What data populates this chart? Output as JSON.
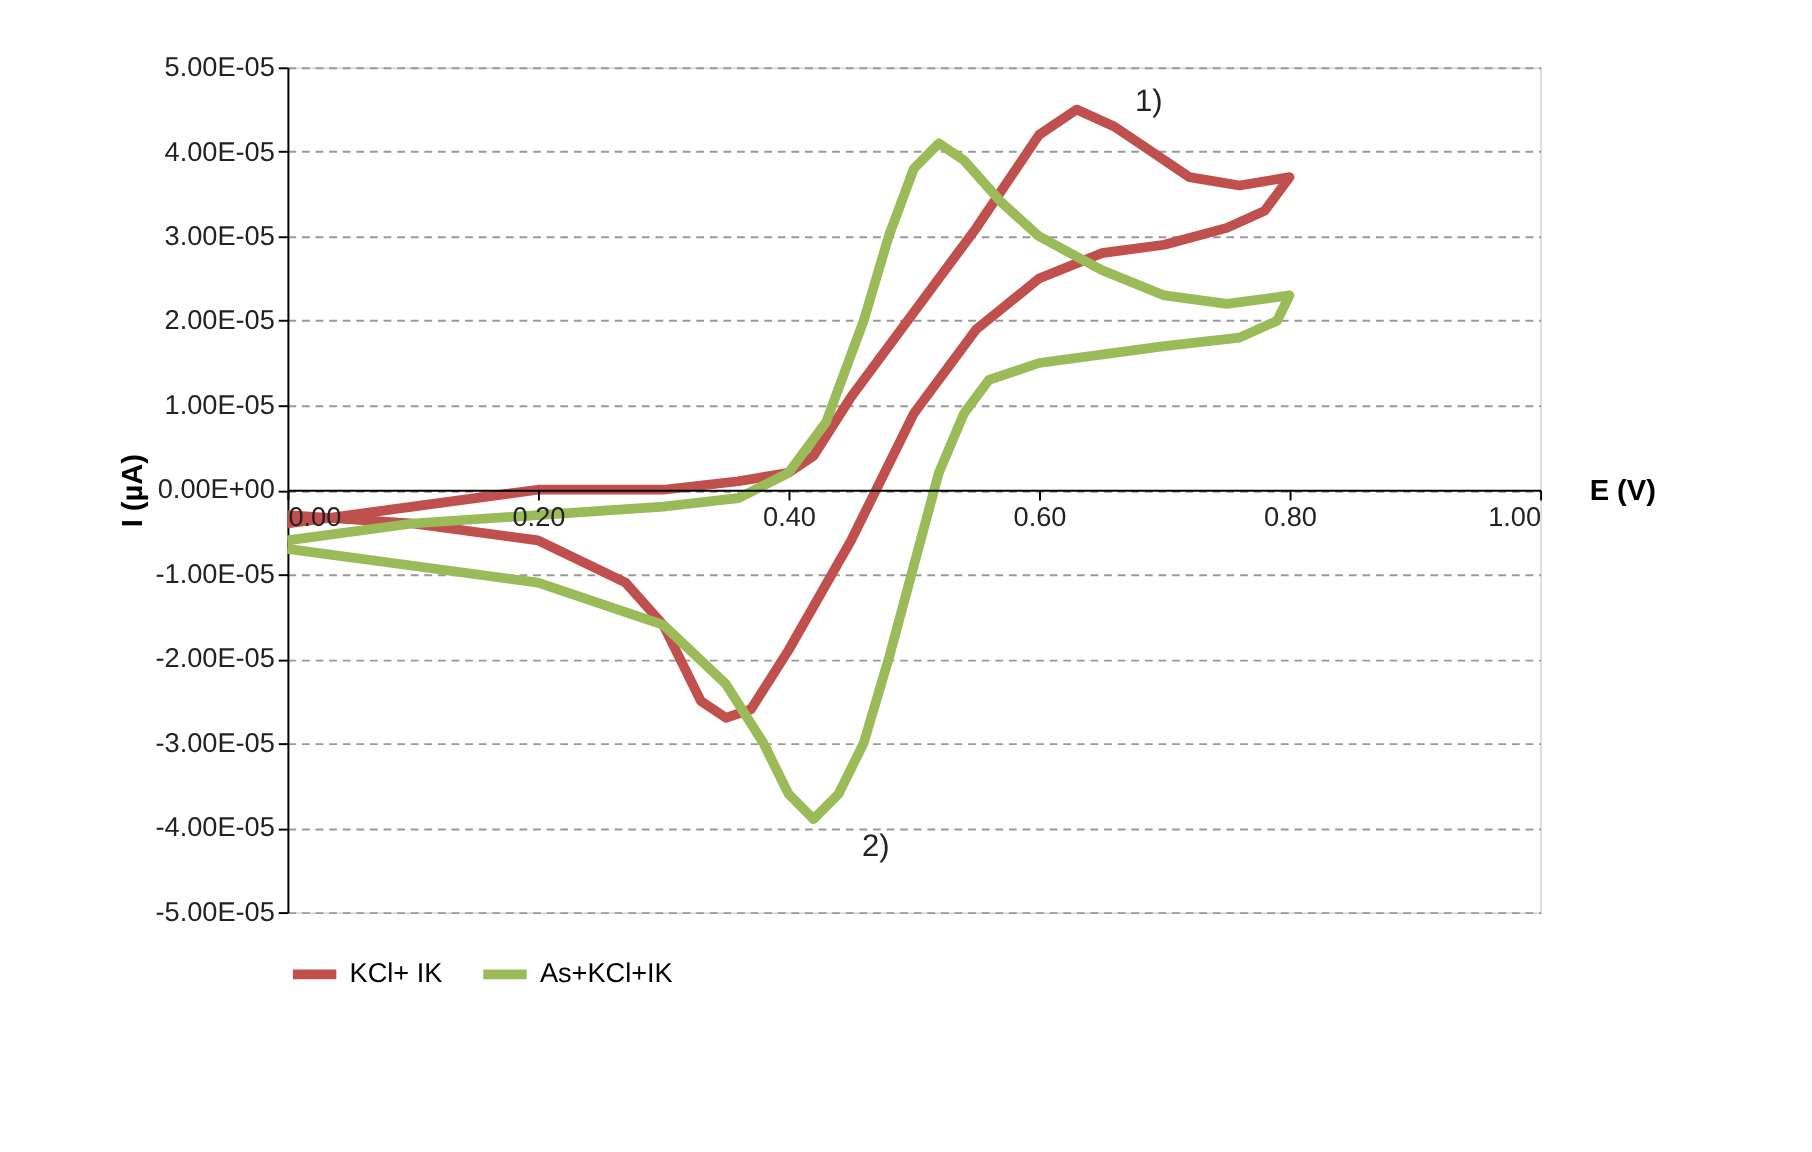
{
  "chart_data": {
    "type": "line",
    "xlabel": "E (V)",
    "ylabel": "I (µA)",
    "xlim": [
      0,
      1
    ],
    "ylim": [
      -5e-05,
      5e-05
    ],
    "xticks": [
      {
        "value": 0,
        "label": "0.00"
      },
      {
        "value": 0.2,
        "label": "0.20"
      },
      {
        "value": 0.4,
        "label": "0.40"
      },
      {
        "value": 0.6,
        "label": "0.60"
      },
      {
        "value": 0.8,
        "label": "0.80"
      },
      {
        "value": 1,
        "label": "1.00"
      }
    ],
    "yticks": [
      {
        "value": -5e-05,
        "label": "-5.00E-05"
      },
      {
        "value": -4e-05,
        "label": "-4.00E-05"
      },
      {
        "value": -3e-05,
        "label": "-3.00E-05"
      },
      {
        "value": -2e-05,
        "label": "-2.00E-05"
      },
      {
        "value": -1e-05,
        "label": "-1.00E-05"
      },
      {
        "value": 0,
        "label": "0.00E+00"
      },
      {
        "value": 1e-05,
        "label": "1.00E-05"
      },
      {
        "value": 2e-05,
        "label": "2.00E-05"
      },
      {
        "value": 3e-05,
        "label": "3.00E-05"
      },
      {
        "value": 4e-05,
        "label": "4.00E-05"
      },
      {
        "value": 5e-05,
        "label": "5.00E-05"
      }
    ],
    "grid": "y",
    "legend": "bottom",
    "marker": "none",
    "line_style": "solid",
    "annotations": [
      {
        "text": "1)",
        "x": 0.63,
        "y": 4.5e-05
      },
      {
        "text": "2)",
        "x": 0.42,
        "y": -3.9e-05
      }
    ],
    "series": [
      {
        "name": "KCl+ IK",
        "color": "#c0504d",
        "x": [
          0,
          0.1,
          0.2,
          0.3,
          0.36,
          0.4,
          0.42,
          0.45,
          0.5,
          0.55,
          0.6,
          0.63,
          0.66,
          0.69,
          0.72,
          0.76,
          0.8,
          0.78,
          0.75,
          0.7,
          0.65,
          0.6,
          0.55,
          0.5,
          0.45,
          0.4,
          0.37,
          0.35,
          0.33,
          0.3,
          0.27,
          0.2,
          0.1,
          0
        ],
        "values": [
          -4e-06,
          -2e-06,
          0,
          0,
          1e-06,
          2e-06,
          4e-06,
          1.1e-05,
          2.1e-05,
          3.1e-05,
          4.2e-05,
          4.5e-05,
          4.3e-05,
          4e-05,
          3.7e-05,
          3.6e-05,
          3.7e-05,
          3.3e-05,
          3.1e-05,
          2.9e-05,
          2.8e-05,
          2.5e-05,
          1.9e-05,
          9e-06,
          -6e-06,
          -1.9e-05,
          -2.6e-05,
          -2.7e-05,
          -2.5e-05,
          -1.6e-05,
          -1.1e-05,
          -6e-06,
          -4e-06,
          -3e-06
        ]
      },
      {
        "name": "As+KCl+IK",
        "color": "#9bbb59",
        "x": [
          0,
          0.1,
          0.2,
          0.3,
          0.36,
          0.4,
          0.43,
          0.46,
          0.48,
          0.5,
          0.52,
          0.54,
          0.57,
          0.6,
          0.65,
          0.7,
          0.75,
          0.8,
          0.79,
          0.76,
          0.7,
          0.6,
          0.56,
          0.54,
          0.52,
          0.5,
          0.48,
          0.46,
          0.44,
          0.42,
          0.4,
          0.38,
          0.35,
          0.3,
          0.2,
          0.1,
          0
        ],
        "values": [
          -6e-06,
          -4e-06,
          -3e-06,
          -2e-06,
          -1e-06,
          2e-06,
          8e-06,
          2e-05,
          3e-05,
          3.8e-05,
          4.1e-05,
          3.9e-05,
          3.4e-05,
          3e-05,
          2.6e-05,
          2.3e-05,
          2.2e-05,
          2.3e-05,
          2e-05,
          1.8e-05,
          1.7e-05,
          1.5e-05,
          1.3e-05,
          9e-06,
          2e-06,
          -9e-06,
          -2e-05,
          -3e-05,
          -3.6e-05,
          -3.9e-05,
          -3.6e-05,
          -3e-05,
          -2.3e-05,
          -1.6e-05,
          -1.1e-05,
          -9e-06,
          -7e-06
        ]
      }
    ]
  }
}
